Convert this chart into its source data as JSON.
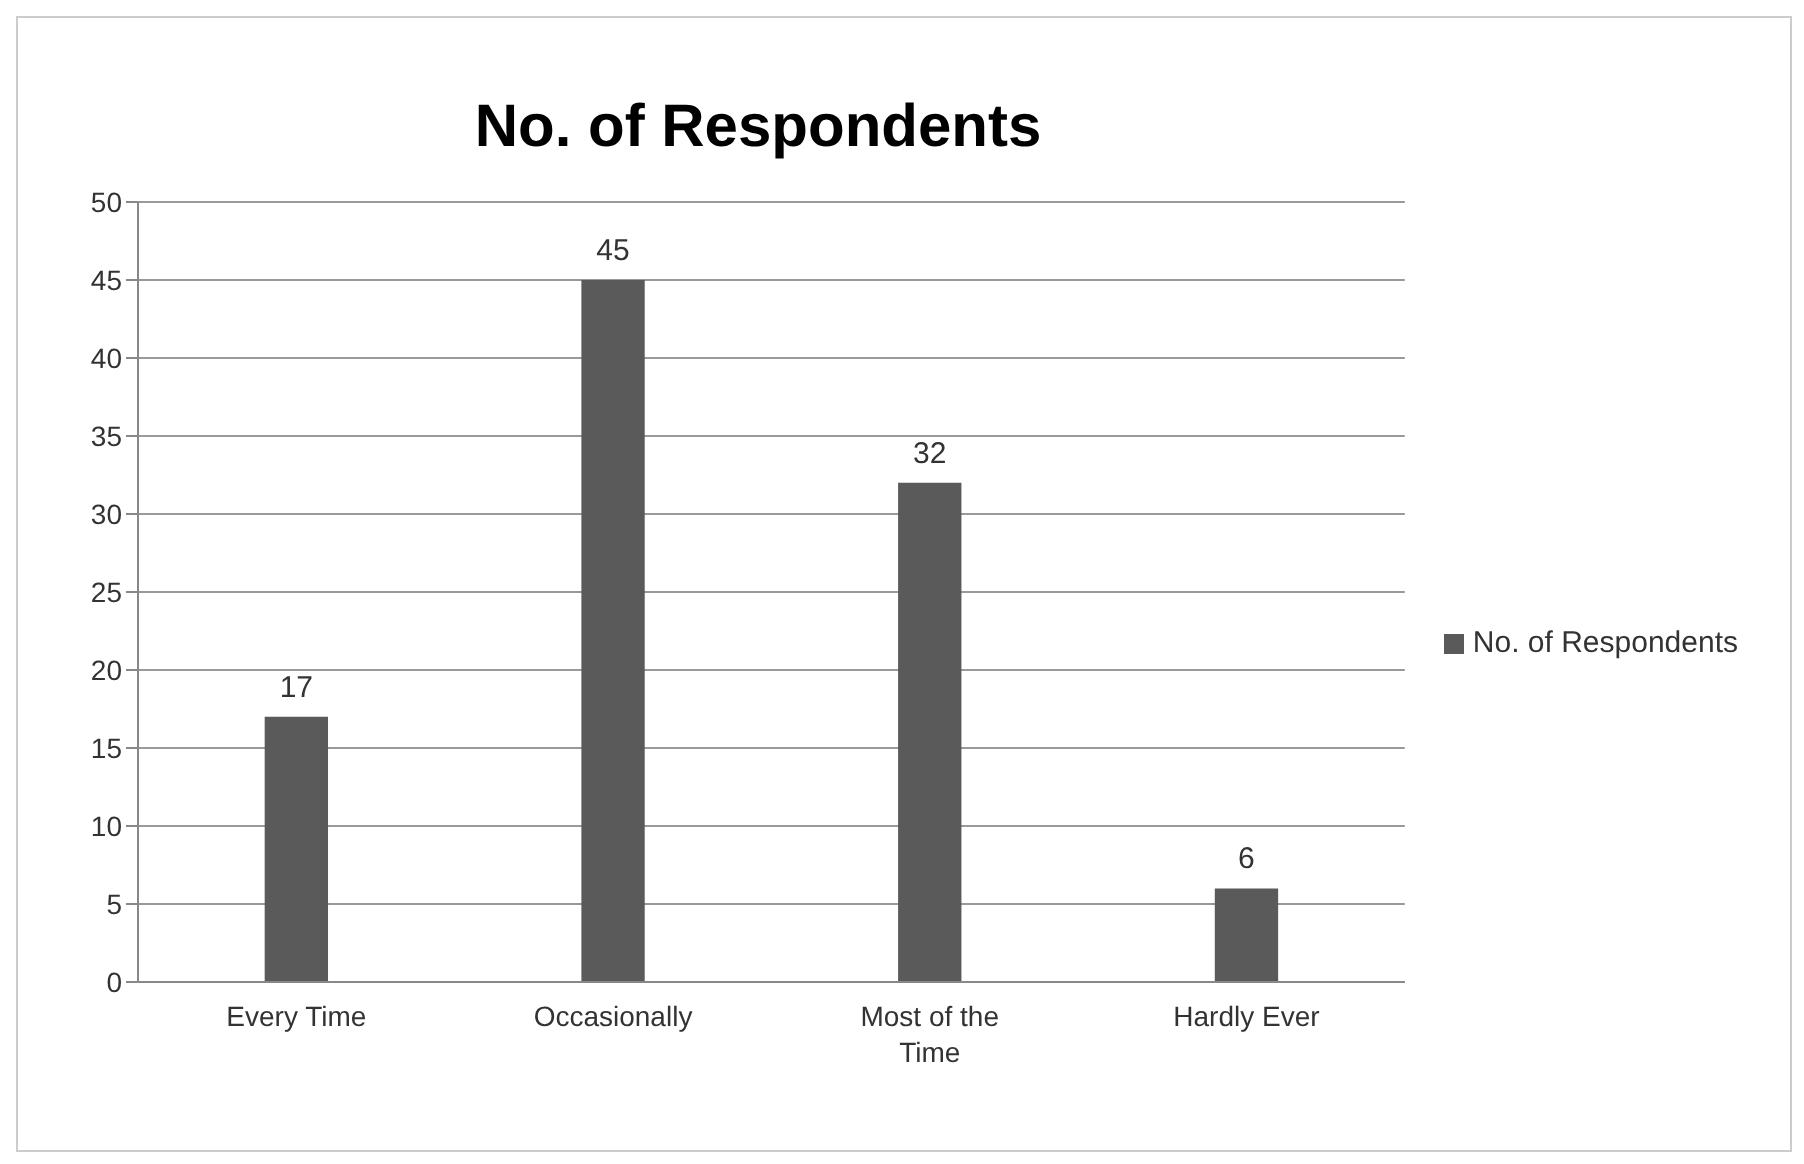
{
  "chart_data": {
    "type": "bar",
    "title": "No. of Respondents",
    "categories": [
      "Every Time",
      "Occasionally",
      "Most of the Time",
      "Hardly Ever"
    ],
    "series": [
      {
        "name": "No. of Respondents",
        "color": "#5a5a5a",
        "values": [
          17,
          45,
          32,
          6
        ]
      }
    ],
    "ylim": [
      0,
      50
    ],
    "yticks": [
      0,
      5,
      10,
      15,
      20,
      25,
      30,
      35,
      40,
      45,
      50
    ],
    "grid": "y",
    "legend": "right",
    "data_labels": true
  }
}
